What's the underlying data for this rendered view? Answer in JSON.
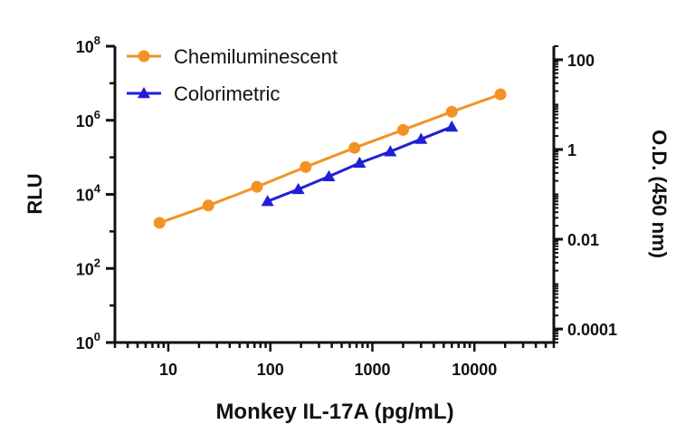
{
  "chart_data": {
    "type": "line",
    "xlabel": "Monkey IL-17A (pg/mL)",
    "ylabel": "RLU",
    "y2label": "O.D. (450 nm)",
    "x_scale": "log",
    "y_scale": "log",
    "y2_scale": "log",
    "xlim": [
      3,
      60000
    ],
    "ylim": [
      1,
      100000000
    ],
    "y2lim": [
      5e-05,
      200
    ],
    "x_ticks": [
      10,
      100,
      1000,
      10000
    ],
    "x_tick_labels": [
      "10",
      "100",
      "1000",
      "10000"
    ],
    "y_ticks": [
      1,
      100,
      10000,
      1000000,
      100000000
    ],
    "y_tick_labels": [
      {
        "base": "10",
        "exp": "0"
      },
      {
        "base": "10",
        "exp": "2"
      },
      {
        "base": "10",
        "exp": "4"
      },
      {
        "base": "10",
        "exp": "6"
      },
      {
        "base": "10",
        "exp": "8"
      }
    ],
    "y2_ticks": [
      0.0001,
      0.01,
      1,
      100
    ],
    "y2_tick_labels": [
      "0.0001",
      "0.01",
      "1",
      "100"
    ],
    "grid": false,
    "legend_position": "top-left",
    "series": [
      {
        "name": "Chemiluminescent",
        "axis": "left",
        "marker": "circle",
        "color": "#f39224",
        "x": [
          8.2,
          24.7,
          74,
          222,
          667,
          2000,
          6000,
          18000
        ],
        "y": [
          1700,
          5000,
          16000,
          55000,
          180000,
          550000,
          1700000,
          5000000
        ]
      },
      {
        "name": "Colorimetric",
        "axis": "right",
        "marker": "triangle",
        "color": "#1f1fd6",
        "x": [
          94,
          188,
          375,
          750,
          1500,
          3000,
          6000
        ],
        "y": [
          0.07,
          0.13,
          0.25,
          0.5,
          0.9,
          1.7,
          3.2
        ]
      }
    ]
  }
}
